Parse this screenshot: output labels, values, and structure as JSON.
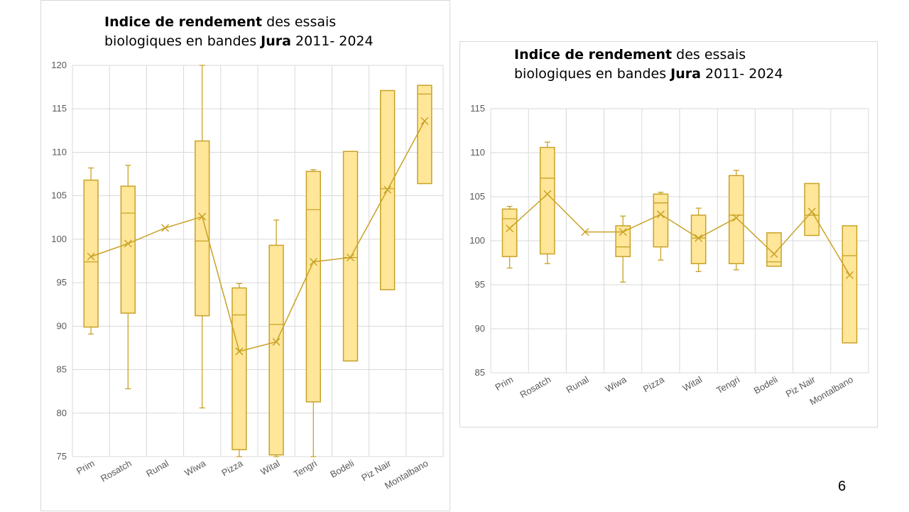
{
  "page_number": "6",
  "chart_data": [
    {
      "type": "box",
      "title_bold_1": "Indice de rendement",
      "title_rest_1": " des essais",
      "title_line2_prefix": "biologiques en bandes ",
      "title_bold_2": "Jura",
      "title_line2_suffix": " 2011- 2024",
      "xlabel": "",
      "ylabel": "",
      "ylim": [
        75,
        120
      ],
      "yticks": [
        75,
        80,
        85,
        90,
        95,
        100,
        105,
        110,
        115,
        120
      ],
      "grid": true,
      "color": "#C9A227",
      "fill": "#FFE699",
      "categories": [
        "Prim",
        "Rosatch",
        "Runal",
        "Wiwa",
        "Pizza",
        "Wital",
        "Tengri",
        "Bodeli",
        "Piz Nair",
        "Montalbano"
      ],
      "boxes": [
        {
          "min": 89.1,
          "q1": 89.9,
          "median": 97.4,
          "q3": 106.8,
          "max": 108.2,
          "mean": 98.0
        },
        {
          "min": 82.8,
          "q1": 91.5,
          "median": 103.0,
          "q3": 106.1,
          "max": 108.5,
          "mean": 99.5
        },
        {
          "min": 101.3,
          "q1": 101.3,
          "median": 101.3,
          "q3": 101.3,
          "max": 101.3,
          "mean": 101.3
        },
        {
          "min": 80.6,
          "q1": 91.2,
          "median": 99.8,
          "q3": 111.3,
          "max": 120.0,
          "mean": 102.6
        },
        {
          "min": 75.0,
          "q1": 75.8,
          "median": 91.3,
          "q3": 94.4,
          "max": 94.9,
          "mean": 87.1
        },
        {
          "min": 75.0,
          "q1": 75.2,
          "median": 90.2,
          "q3": 99.3,
          "max": 102.2,
          "mean": 88.2
        },
        {
          "min": 75.0,
          "q1": 81.3,
          "median": 103.4,
          "q3": 107.8,
          "max": 108.0,
          "mean": 97.4
        },
        {
          "min": 86.0,
          "q1": 86.0,
          "median": 97.9,
          "q3": 110.1,
          "max": 110.1,
          "mean": 97.9
        },
        {
          "min": 94.2,
          "q1": 94.2,
          "median": 105.8,
          "q3": 117.1,
          "max": 117.1,
          "mean": 105.7
        },
        {
          "min": 106.4,
          "q1": 106.4,
          "median": 116.7,
          "q3": 117.7,
          "max": 117.7,
          "mean": 113.6
        }
      ]
    },
    {
      "type": "box",
      "title_bold_1": "Indice de rendement",
      "title_rest_1": " des essais",
      "title_line2_prefix": "biologiques en bandes ",
      "title_bold_2": "Jura",
      "title_line2_suffix": " 2011- 2024",
      "xlabel": "",
      "ylabel": "",
      "ylim": [
        85,
        115
      ],
      "yticks": [
        85,
        90,
        95,
        100,
        105,
        110,
        115
      ],
      "grid": true,
      "color": "#C9A227",
      "fill": "#FFE699",
      "categories": [
        "Prim",
        "Rosatch",
        "Runal",
        "Wiwa",
        "Pizza",
        "Wital",
        "Tengri",
        "Bodeli",
        "Piz Nair",
        "Montalbano"
      ],
      "boxes": [
        {
          "min": 96.9,
          "q1": 98.2,
          "median": 102.5,
          "q3": 103.6,
          "max": 103.9,
          "mean": 101.4
        },
        {
          "min": 97.4,
          "q1": 98.5,
          "median": 107.1,
          "q3": 110.6,
          "max": 111.2,
          "mean": 105.3
        },
        {
          "min": 101.0,
          "q1": 101.0,
          "median": 101.0,
          "q3": 101.0,
          "max": 101.0,
          "mean": 101.0
        },
        {
          "min": 95.3,
          "q1": 98.2,
          "median": 99.3,
          "q3": 101.7,
          "max": 102.8,
          "mean": 101.0
        },
        {
          "min": 97.8,
          "q1": 99.3,
          "median": 104.3,
          "q3": 105.3,
          "max": 105.5,
          "mean": 103.0
        },
        {
          "min": 96.5,
          "q1": 97.4,
          "median": 100.3,
          "q3": 102.9,
          "max": 103.7,
          "mean": 100.3
        },
        {
          "min": 96.7,
          "q1": 97.4,
          "median": 102.9,
          "q3": 107.4,
          "max": 108.0,
          "mean": 102.6
        },
        {
          "min": 97.1,
          "q1": 97.1,
          "median": 97.6,
          "q3": 100.9,
          "max": 100.9,
          "mean": 98.5
        },
        {
          "min": 100.6,
          "q1": 100.6,
          "median": 102.9,
          "q3": 106.5,
          "max": 106.5,
          "mean": 103.3
        },
        {
          "min": 88.4,
          "q1": 88.4,
          "median": 98.3,
          "q3": 101.7,
          "max": 101.7,
          "mean": 96.1
        }
      ]
    }
  ]
}
